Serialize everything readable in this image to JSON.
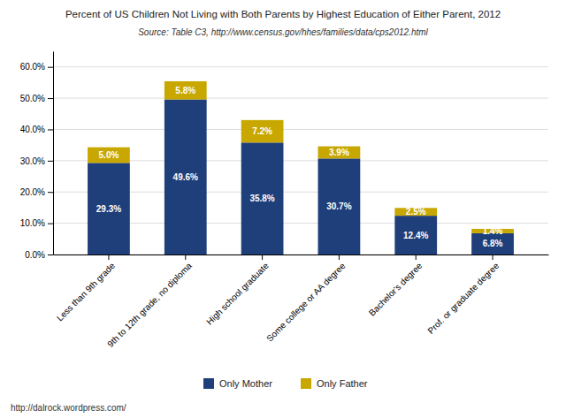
{
  "chart_data": {
    "type": "bar",
    "stacked": true,
    "title": "Percent of US Children Not Living with Both Parents by Highest Education of Either Parent, 2012",
    "subtitle": "Source: Table C3, http://www.census.gov/hhes/families/data/cps2012.html",
    "annotations": [
      "http://dalrock.wordpress.com/"
    ],
    "categories": [
      "Less than 9th grade",
      "9th to 12th grade, no diploma",
      "High school graduate",
      "Some college or AA degree",
      "Bachelor's degree",
      "Prof. or graduate degree"
    ],
    "series": [
      {
        "name": "Only Mother",
        "color": "#1F3F7A",
        "values": [
          29.3,
          49.6,
          35.8,
          30.7,
          12.4,
          6.8
        ],
        "value_labels": [
          "29.3%",
          "49.6%",
          "35.8%",
          "30.7%",
          "12.4%",
          "6.8%"
        ]
      },
      {
        "name": "Only Father",
        "color": "#C8A800",
        "values": [
          5.0,
          5.8,
          7.2,
          3.9,
          2.5,
          1.4
        ],
        "value_labels": [
          "5.0%",
          "5.8%",
          "7.2%",
          "3.9%",
          "2.5%",
          "1.4%"
        ]
      }
    ],
    "ylim": [
      0,
      65
    ],
    "yticks": [
      {
        "value": 0,
        "label": "0.0%"
      },
      {
        "value": 10,
        "label": "10.0%"
      },
      {
        "value": 20,
        "label": "20.0%"
      },
      {
        "value": 30,
        "label": "30.0%"
      },
      {
        "value": 40,
        "label": "40.0%"
      },
      {
        "value": 50,
        "label": "50.0%"
      },
      {
        "value": 60,
        "label": "60.0%"
      }
    ],
    "grid": true,
    "legend": "bottom",
    "data_labels": true
  }
}
